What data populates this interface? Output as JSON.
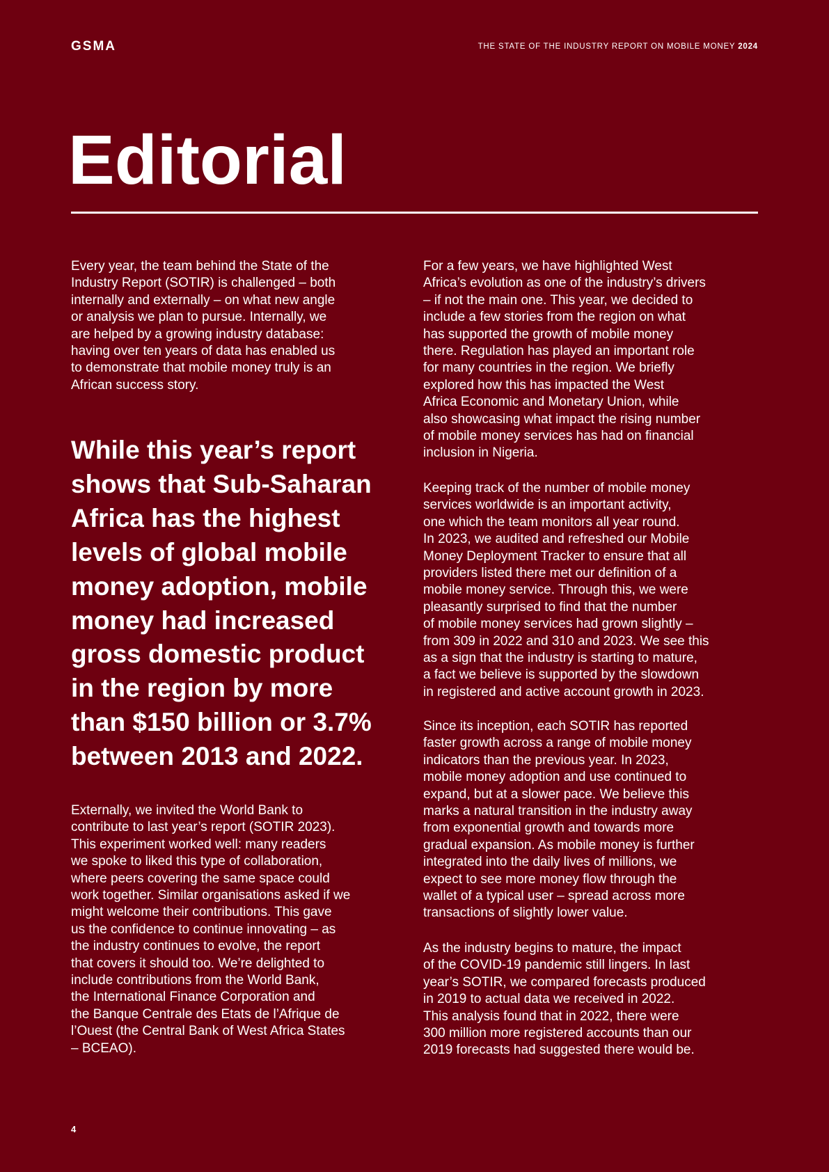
{
  "header": {
    "logo": "GSMA",
    "report_title": "THE STATE OF THE INDUSTRY REPORT ON MOBILE MONEY",
    "report_year": "2024"
  },
  "title": "Editorial",
  "left_column": {
    "intro": [
      "Every year, the team behind the State of the",
      "Industry Report (SOTIR) is challenged – both",
      "internally and externally – on what new angle",
      "or analysis we plan to pursue. Internally, we",
      "are helped by a growing industry database:",
      "having over ten years of data has enabled us",
      "to demonstrate that mobile money truly is an",
      "African success story."
    ],
    "pull_quote": [
      "While this year’s report",
      "shows that Sub-Saharan",
      "Africa has the highest",
      "levels of global mobile",
      "money adoption, mobile",
      "money had increased",
      "gross domestic product",
      "in the region by more",
      "than $150 billion or 3.7%",
      "between 2013 and 2022."
    ],
    "outro": [
      "Externally, we invited the World Bank to",
      "contribute to last year’s report (SOTIR 2023).",
      "This experiment worked well: many readers",
      "we spoke to liked this type of collaboration,",
      "where peers covering the same space could",
      "work together. Similar organisations asked if we",
      "might welcome their contributions. This gave",
      "us the confidence to continue innovating – as",
      "the industry continues to evolve, the report",
      "that covers it should too. We’re delighted to",
      "include contributions from the World Bank,",
      "the International Finance Corporation and",
      "the Banque Centrale des Etats de l’Afrique de",
      "l’Ouest (the Central Bank of West Africa States",
      "– BCEAO)."
    ]
  },
  "right_column": {
    "paragraphs": [
      [
        "For a few years, we have highlighted West",
        "Africa’s evolution as one of the industry’s drivers",
        "– if not the main one. This year, we decided to",
        "include a few stories from the region on what",
        "has supported the growth of mobile money",
        "there. Regulation has played an important role",
        "for many countries in the region. We briefly",
        "explored how this has impacted the West",
        "Africa Economic and Monetary Union, while",
        "also showcasing what impact the rising number",
        "of mobile money services has had on financial",
        "inclusion in Nigeria."
      ],
      [
        "Keeping track of the number of mobile money",
        "services worldwide is an important activity,",
        "one which the team monitors all year round.",
        "In 2023, we audited and refreshed our Mobile",
        "Money Deployment Tracker to ensure that all",
        "providers listed there met our definition of a",
        "mobile money service. Through this, we were",
        "pleasantly surprised to find that the number",
        "of mobile money services had grown slightly –",
        "from 309 in 2022 and 310 and 2023. We see this",
        "as a sign that the industry is starting to mature,",
        "a fact we believe is supported by the slowdown",
        "in registered and active account growth in 2023."
      ],
      [
        "Since its inception, each SOTIR has reported",
        "faster growth across a range of mobile money",
        "indicators than the previous year. In 2023,",
        "mobile money adoption and use continued to",
        "expand, but at a slower pace. We believe this",
        "marks a natural transition in the industry away",
        "from exponential growth and towards more",
        "gradual expansion. As mobile money is further",
        "integrated into the daily lives of millions, we",
        "expect to see more money flow through the",
        "wallet of a typical user – spread across more",
        "transactions of slightly lower value."
      ],
      [
        "As the industry begins to mature, the impact",
        "of the COVID-19 pandemic still lingers. In last",
        "year’s SOTIR, we compared forecasts produced",
        "in 2019 to actual data we received in 2022.",
        "This analysis found that in 2022, there were",
        "300 million more registered accounts than our",
        "2019 forecasts had suggested there would be."
      ]
    ]
  },
  "page_number": "4"
}
